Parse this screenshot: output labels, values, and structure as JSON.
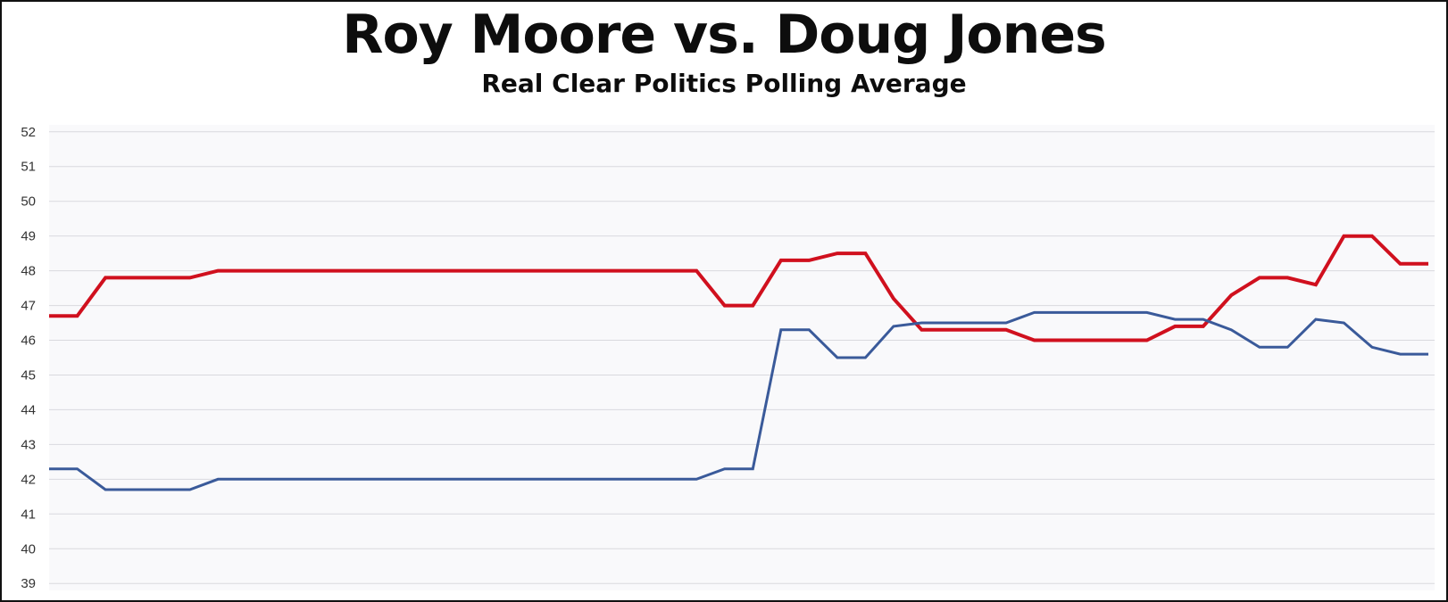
{
  "chart_data": {
    "type": "line",
    "title": "Roy Moore vs. Doug Jones",
    "subtitle": "Real Clear Politics Polling Average",
    "xlabel": "",
    "ylabel": "",
    "ylim": [
      38.8,
      52.2
    ],
    "yticks": [
      52,
      51,
      50,
      49,
      48,
      47,
      46,
      45,
      44,
      43,
      42,
      41,
      40,
      39
    ],
    "grid": true,
    "legend": "none",
    "x": [
      1,
      2,
      3,
      4,
      5,
      6,
      7,
      8,
      9,
      10,
      11,
      12,
      13,
      14,
      15,
      16,
      17,
      18,
      19,
      20,
      21,
      22,
      23,
      24,
      25,
      26,
      27,
      28,
      29,
      30,
      31,
      32,
      33,
      34,
      35,
      36,
      37,
      38,
      39,
      40,
      41,
      42,
      43,
      44,
      45,
      46,
      47,
      48,
      49,
      50
    ],
    "series": [
      {
        "color": "#d0101e",
        "values": [
          46.7,
          46.7,
          47.8,
          47.8,
          47.8,
          47.8,
          48.0,
          48.0,
          48.0,
          48.0,
          48.0,
          48.0,
          48.0,
          48.0,
          48.0,
          48.0,
          48.0,
          48.0,
          48.0,
          48.0,
          48.0,
          48.0,
          48.0,
          48.0,
          47.0,
          47.0,
          48.3,
          48.3,
          48.5,
          48.5,
          47.2,
          46.3,
          46.3,
          46.3,
          46.3,
          46.0,
          46.0,
          46.0,
          46.0,
          46.0,
          46.4,
          46.4,
          47.3,
          47.8,
          47.8,
          47.6,
          49.0,
          49.0,
          48.2,
          48.2
        ]
      },
      {
        "color": "#3a5a9a",
        "values": [
          42.3,
          42.3,
          41.7,
          41.7,
          41.7,
          41.7,
          42.0,
          42.0,
          42.0,
          42.0,
          42.0,
          42.0,
          42.0,
          42.0,
          42.0,
          42.0,
          42.0,
          42.0,
          42.0,
          42.0,
          42.0,
          42.0,
          42.0,
          42.0,
          42.3,
          42.3,
          46.3,
          46.3,
          45.5,
          45.5,
          46.4,
          46.5,
          46.5,
          46.5,
          46.5,
          46.8,
          46.8,
          46.8,
          46.8,
          46.8,
          46.6,
          46.6,
          46.3,
          45.8,
          45.8,
          46.6,
          46.5,
          45.8,
          45.6,
          45.6
        ]
      }
    ]
  }
}
